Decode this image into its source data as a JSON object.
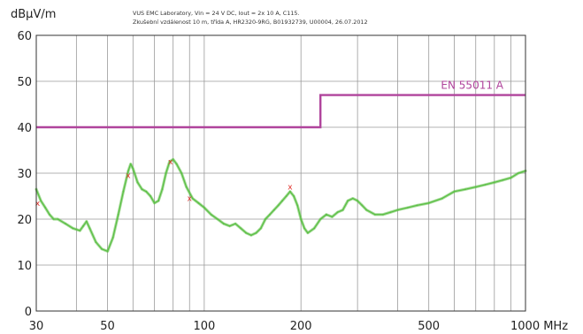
{
  "header": {
    "line1": "VUS EMC Laboratory, Vin = 24 V DC, Iout = 2x 10 A, C115.",
    "line2": "Zkušební vzdálenost 10 m, třída A, HR2320-9RG, B01932739, U00004, 26.07.2012"
  },
  "chart_data": {
    "type": "line",
    "ylabel": "dBμV/m",
    "xlabel": "MHz",
    "x_scale": "log",
    "xlim": [
      30,
      1000
    ],
    "ylim": [
      0,
      60
    ],
    "grid": true,
    "x_ticks": [
      {
        "value": 30,
        "label": "30"
      },
      {
        "value": 50,
        "label": "50"
      },
      {
        "value": 100,
        "label": "100"
      },
      {
        "value": 200,
        "label": "200"
      },
      {
        "value": 500,
        "label": "500"
      },
      {
        "value": 1000,
        "label": "1000 MHz"
      }
    ],
    "y_ticks": [
      0,
      10,
      20,
      30,
      40,
      50,
      60
    ],
    "limit_line": {
      "name": "EN 55011 A",
      "color": "#b0449c",
      "points": [
        [
          30,
          40
        ],
        [
          230,
          40
        ],
        [
          230,
          47
        ],
        [
          1000,
          47
        ]
      ]
    },
    "series": [
      {
        "color": "#5cbf46",
        "points": [
          [
            30,
            26.5
          ],
          [
            31,
            24
          ],
          [
            32,
            22.5
          ],
          [
            33,
            21
          ],
          [
            34,
            20
          ],
          [
            35,
            20
          ],
          [
            37,
            19
          ],
          [
            39,
            18
          ],
          [
            41,
            17.5
          ],
          [
            42,
            18.5
          ],
          [
            43,
            19.5
          ],
          [
            44,
            18
          ],
          [
            46,
            15
          ],
          [
            48,
            13.5
          ],
          [
            50,
            13
          ],
          [
            52,
            16
          ],
          [
            54,
            21
          ],
          [
            56,
            26
          ],
          [
            58,
            30.5
          ],
          [
            59,
            32
          ],
          [
            60,
            31
          ],
          [
            62,
            28
          ],
          [
            64,
            26.5
          ],
          [
            66,
            26
          ],
          [
            68,
            25
          ],
          [
            70,
            23.5
          ],
          [
            72,
            24
          ],
          [
            74,
            26.5
          ],
          [
            76,
            30
          ],
          [
            78,
            32.5
          ],
          [
            80,
            33
          ],
          [
            82,
            32
          ],
          [
            85,
            30
          ],
          [
            88,
            27
          ],
          [
            92,
            24.5
          ],
          [
            96,
            23.5
          ],
          [
            100,
            22.5
          ],
          [
            105,
            21
          ],
          [
            110,
            20
          ],
          [
            115,
            19
          ],
          [
            120,
            18.5
          ],
          [
            125,
            19
          ],
          [
            130,
            18
          ],
          [
            135,
            17
          ],
          [
            140,
            16.5
          ],
          [
            145,
            17
          ],
          [
            150,
            18
          ],
          [
            155,
            20
          ],
          [
            160,
            21
          ],
          [
            165,
            22
          ],
          [
            170,
            23
          ],
          [
            175,
            24
          ],
          [
            180,
            25
          ],
          [
            185,
            26
          ],
          [
            190,
            25
          ],
          [
            195,
            23
          ],
          [
            200,
            20
          ],
          [
            205,
            18
          ],
          [
            210,
            17
          ],
          [
            220,
            18
          ],
          [
            230,
            20
          ],
          [
            240,
            21
          ],
          [
            250,
            20.5
          ],
          [
            260,
            21.5
          ],
          [
            270,
            22
          ],
          [
            280,
            24
          ],
          [
            290,
            24.5
          ],
          [
            300,
            24
          ],
          [
            310,
            23
          ],
          [
            320,
            22
          ],
          [
            340,
            21
          ],
          [
            360,
            21
          ],
          [
            380,
            21.5
          ],
          [
            400,
            22
          ],
          [
            430,
            22.5
          ],
          [
            460,
            23
          ],
          [
            500,
            23.5
          ],
          [
            550,
            24.5
          ],
          [
            600,
            26
          ],
          [
            650,
            26.5
          ],
          [
            700,
            27
          ],
          [
            750,
            27.5
          ],
          [
            800,
            28
          ],
          [
            850,
            28.5
          ],
          [
            900,
            29
          ],
          [
            950,
            30
          ],
          [
            1000,
            30.5
          ]
        ]
      }
    ],
    "markers": [
      [
        30.3,
        23.5
      ],
      [
        58,
        29.5
      ],
      [
        78.5,
        32.5
      ],
      [
        90,
        24.5
      ],
      [
        185,
        27
      ]
    ],
    "marker_symbol": "x",
    "marker_color": "#e0302a"
  }
}
